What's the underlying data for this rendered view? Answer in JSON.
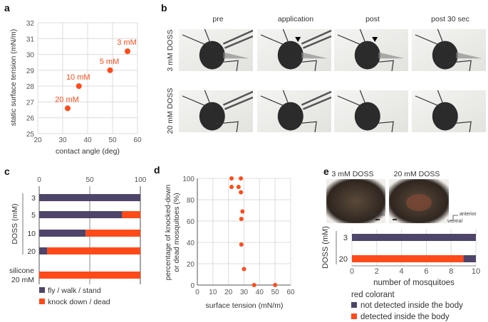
{
  "colors": {
    "accent": "#ff4a1a",
    "purple": "#4f4469",
    "grid": "#dcdcdc"
  },
  "panels": {
    "a": "a",
    "b": "b",
    "c": "c",
    "d": "d",
    "e": "e"
  },
  "photos_b": {
    "columns": [
      "pre",
      "application",
      "post",
      "post 30 sec"
    ],
    "rows": [
      "3 mM DOSS",
      "20 mM DOSS"
    ]
  },
  "photos_e": {
    "labels": [
      "3 mM DOSS",
      "20 mM DOSS"
    ],
    "scale_bar": "100 µm",
    "orientation": {
      "anterior": "anterior",
      "ventral": "ventral"
    }
  },
  "chart_data": [
    {
      "id": "a",
      "type": "scatter",
      "xlabel": "contact angle (deg)",
      "ylabel": "static surface tension (mN/m)",
      "xlim": [
        20,
        60
      ],
      "ylim": [
        25,
        32
      ],
      "xticks": [
        20,
        30,
        40,
        50,
        60
      ],
      "yticks": [
        25,
        26,
        27,
        28,
        29,
        30,
        31,
        32
      ],
      "grid": true,
      "points": [
        {
          "label": "3 mM",
          "x": 56,
          "y": 30.2
        },
        {
          "label": "5 mM",
          "x": 49,
          "y": 29.0
        },
        {
          "label": "10 mM",
          "x": 36.5,
          "y": 28.0
        },
        {
          "label": "20 mM",
          "x": 32,
          "y": 26.6
        }
      ]
    },
    {
      "id": "c",
      "type": "bar",
      "orientation": "horizontal-stacked",
      "ylabel": "DOSS (mM)",
      "xlim": [
        0,
        100
      ],
      "xticks": [
        0,
        50,
        100
      ],
      "categories": [
        "3",
        "5",
        "10",
        "20",
        "silicone 20 mM"
      ],
      "series": [
        {
          "name": "fly / walk / stand",
          "color": "#4f4469",
          "values": [
            100,
            82,
            46,
            8,
            0
          ]
        },
        {
          "name": "knock down / dead",
          "color": "#ff4a1a",
          "values": [
            0,
            18,
            54,
            92,
            100
          ]
        }
      ],
      "legend": "bottom"
    },
    {
      "id": "d",
      "type": "scatter",
      "xlabel": "surface tension (mN/m)",
      "ylabel": [
        "percentage of knocked-down",
        "or dead mosquitoes (%)"
      ],
      "xlim": [
        0,
        60
      ],
      "ylim": [
        0,
        100
      ],
      "xticks": [
        0,
        10,
        20,
        30,
        40,
        50,
        60
      ],
      "yticks": [
        0,
        20,
        40,
        60,
        80,
        100
      ],
      "grid": true,
      "points": [
        {
          "x": 22,
          "y": 100
        },
        {
          "x": 28,
          "y": 100
        },
        {
          "x": 22,
          "y": 92
        },
        {
          "x": 26.5,
          "y": 92
        },
        {
          "x": 28,
          "y": 87
        },
        {
          "x": 29,
          "y": 69
        },
        {
          "x": 28.3,
          "y": 62
        },
        {
          "x": 28.3,
          "y": 38
        },
        {
          "x": 30,
          "y": 15
        },
        {
          "x": 36.5,
          "y": 0
        },
        {
          "x": 50,
          "y": 0
        }
      ]
    },
    {
      "id": "e",
      "type": "bar",
      "orientation": "horizontal-stacked",
      "xlabel": "number of mosquitoes",
      "ylabel": "DOSS (mM)",
      "xlim": [
        0,
        10
      ],
      "xticks": [
        0,
        2,
        4,
        6,
        8,
        10
      ],
      "grid": true,
      "categories": [
        "3",
        "20"
      ],
      "legend_title": "red colorant",
      "series": [
        {
          "name": "detected inside the body",
          "color": "#ff4a1a",
          "values": [
            0,
            9
          ]
        },
        {
          "name": "not detected inside the body",
          "color": "#4f4469",
          "values": [
            10,
            1
          ]
        }
      ],
      "legend_order": [
        "not detected inside the body",
        "detected inside the body"
      ],
      "legend": "bottom"
    }
  ]
}
